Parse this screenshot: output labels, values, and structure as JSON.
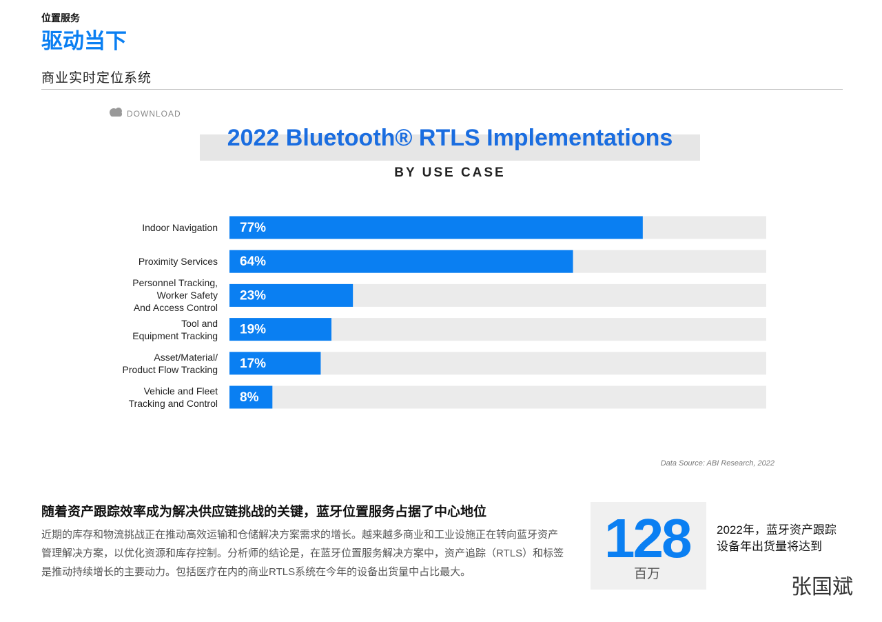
{
  "header": {
    "section": "位置服务",
    "title": "驱动当下",
    "subtitle": "商业实时定位系统"
  },
  "download": "DOWNLOAD",
  "chart_data": {
    "type": "barh",
    "title": "2022 Bluetooth® RTLS Implementations",
    "subtitle": "BY USE CASE",
    "categories": [
      "Indoor Navigation",
      "Proximity Services",
      "Personnel Tracking,\nWorker Safety\nAnd Access Control",
      "Tool and\nEquipment Tracking",
      "Asset/Material/\nProduct Flow Tracking",
      "Vehicle and Fleet\nTracking and Control"
    ],
    "values": [
      77,
      64,
      23,
      19,
      17,
      8
    ],
    "value_labels": [
      "77%",
      "64%",
      "23%",
      "19%",
      "17%",
      "8%"
    ],
    "color": "#0a7ff2",
    "track_color": "#ebebeb",
    "xlim": [
      0,
      100
    ],
    "source": "Data Source: ABI Research, 2022"
  },
  "article": {
    "heading": "随着资产跟踪效率成为解决供应链挑战的关键，蓝牙位置服务占据了中心地位",
    "body": "近期的库存和物流挑战正在推动高效运输和仓储解决方案需求的增长。越来越多商业和工业设施正在转向蓝牙资产管理解决方案，以优化资源和库存控制。分析师的结论是，在蓝牙位置服务解决方案中，资产追踪（RTLS）和标签是推动持续增长的主要动力。包括医疗在内的商业RTLS系统在今年的设备出货量中占比最大。"
  },
  "stat": {
    "number": "128",
    "unit": "百万",
    "caption": "2022年，蓝牙资产跟踪设备年出货量将达到"
  },
  "watermark": "张国斌"
}
